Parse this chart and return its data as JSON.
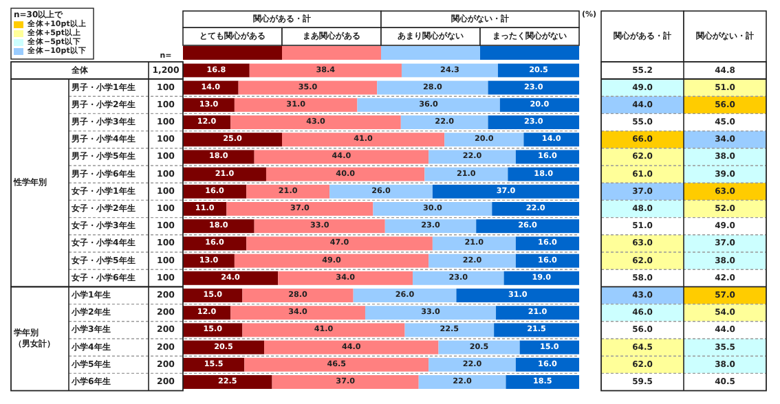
{
  "chart_data": [
    {
      "type": "bar",
      "orientation": "horizontal",
      "stacked": true,
      "legend": "top",
      "tick_labels": "y",
      "xlim": [
        0,
        100
      ],
      "categories": [
        "全体"
      ],
      "series": [
        {
          "name": "とても関心がある",
          "color": "#7b0000",
          "values": [
            16.8
          ],
          "value_labels": [
            "16.8"
          ]
        },
        {
          "name": "まあ関心がある",
          "color": "#ff8080",
          "values": [
            38.4
          ],
          "value_labels": [
            "38.4"
          ]
        },
        {
          "name": "あまり関心がない",
          "color": "#99ccff",
          "values": [
            24.3
          ],
          "value_labels": [
            "24.3"
          ]
        },
        {
          "name": "まったく関心がない",
          "color": "#0066cc",
          "values": [
            20.5
          ],
          "value_labels": [
            "20.5"
          ]
        }
      ],
      "annotations": [
        "関心がある・計",
        "関心がない・計",
        "n=",
        "(%)",
        "1,200"
      ]
    },
    {
      "type": "bar",
      "orientation": "horizontal",
      "stacked": true,
      "tick_labels": "y",
      "xlim": [
        0,
        100
      ],
      "ylabel": "性学年別",
      "categories": [
        "男子・小学1年生",
        "男子・小学2年生",
        "男子・小学3年生",
        "男子・小学4年生",
        "男子・小学5年生",
        "男子・小学6年生",
        "女子・小学1年生",
        "女子・小学2年生",
        "女子・小学3年生",
        "女子・小学4年生",
        "女子・小学5年生",
        "女子・小学6年生"
      ],
      "series": [
        {
          "color": "#7b0000",
          "values": [
            14.0,
            13.0,
            12.0,
            25.0,
            18.0,
            21.0,
            16.0,
            11.0,
            18.0,
            16.0,
            13.0,
            24.0
          ],
          "value_labels": [
            "14.0",
            "13.0",
            "12.0",
            "25.0",
            "18.0",
            "21.0",
            "16.0",
            "11.0",
            "18.0",
            "16.0",
            "13.0",
            "24.0"
          ]
        },
        {
          "color": "#ff8080",
          "values": [
            35.0,
            31.0,
            43.0,
            41.0,
            44.0,
            40.0,
            21.0,
            37.0,
            33.0,
            47.0,
            49.0,
            34.0
          ],
          "value_labels": [
            "35.0",
            "31.0",
            "43.0",
            "41.0",
            "44.0",
            "40.0",
            "21.0",
            "37.0",
            "33.0",
            "47.0",
            "49.0",
            "34.0"
          ]
        },
        {
          "color": "#99ccff",
          "values": [
            28.0,
            36.0,
            22.0,
            20.0,
            22.0,
            21.0,
            26.0,
            30.0,
            23.0,
            21.0,
            22.0,
            23.0
          ],
          "value_labels": [
            "28.0",
            "36.0",
            "22.0",
            "20.0",
            "22.0",
            "21.0",
            "26.0",
            "30.0",
            "23.0",
            "21.0",
            "22.0",
            "23.0"
          ]
        },
        {
          "color": "#0066cc",
          "values": [
            23.0,
            20.0,
            23.0,
            14.0,
            16.0,
            18.0,
            37.0,
            22.0,
            26.0,
            16.0,
            16.0,
            19.0
          ],
          "value_labels": [
            "23.0",
            "20.0",
            "23.0",
            "14.0",
            "16.0",
            "18.0",
            "37.0",
            "22.0",
            "26.0",
            "16.0",
            "16.0",
            "19.0"
          ]
        }
      ],
      "annotations": [
        "100",
        "100",
        "100",
        "100",
        "100",
        "100",
        "100",
        "100",
        "100",
        "100",
        "100",
        "100"
      ]
    },
    {
      "type": "bar",
      "orientation": "horizontal",
      "stacked": true,
      "tick_labels": "y",
      "xlim": [
        0,
        100
      ],
      "ylabel": "学年別（男女計）",
      "categories": [
        "小学1年生",
        "小学2年生",
        "小学3年生",
        "小学4年生",
        "小学5年生",
        "小学6年生"
      ],
      "series": [
        {
          "color": "#7b0000",
          "values": [
            15.0,
            12.0,
            15.0,
            20.5,
            15.5,
            22.5
          ],
          "value_labels": [
            "15.0",
            "12.0",
            "15.0",
            "20.5",
            "15.5",
            "22.5"
          ]
        },
        {
          "color": "#ff8080",
          "values": [
            28.0,
            34.0,
            41.0,
            44.0,
            46.5,
            37.0
          ],
          "value_labels": [
            "28.0",
            "34.0",
            "41.0",
            "44.0",
            "46.5",
            "37.0"
          ]
        },
        {
          "color": "#99ccff",
          "values": [
            26.0,
            33.0,
            22.5,
            20.5,
            22.0,
            22.0
          ],
          "value_labels": [
            "26.0",
            "33.0",
            "22.5",
            "20.5",
            "22.0",
            "22.0"
          ]
        },
        {
          "color": "#0066cc",
          "values": [
            31.0,
            21.0,
            21.5,
            15.0,
            16.0,
            18.5
          ],
          "value_labels": [
            "31.0",
            "21.0",
            "21.5",
            "15.0",
            "16.0",
            "18.5"
          ]
        }
      ],
      "annotations": [
        "200",
        "200",
        "200",
        "200",
        "200",
        "200"
      ]
    },
    {
      "type": "other",
      "categories": [
        "関心がある・計",
        "関心がない・計"
      ],
      "annotations": [
        "55.2",
        "44.8",
        "49.0",
        "51.0",
        "44.0",
        "56.0",
        "55.0",
        "45.0",
        "66.0",
        "34.0",
        "62.0",
        "38.0",
        "61.0",
        "39.0",
        "37.0",
        "63.0",
        "48.0",
        "52.0",
        "51.0",
        "49.0",
        "63.0",
        "37.0",
        "62.0",
        "38.0",
        "58.0",
        "42.0",
        "43.0",
        "57.0",
        "46.0",
        "54.0",
        "56.0",
        "44.0",
        "64.5",
        "35.5",
        "62.0",
        "38.0",
        "59.5",
        "40.5"
      ],
      "colors": [
        null,
        null,
        "#ccffff",
        "#ffff99",
        "#99ccff",
        "#ffcc00",
        null,
        null,
        "#ffcc00",
        "#99ccff",
        "#ffff99",
        "#ccffff",
        "#ffff99",
        "#ccffff",
        "#99ccff",
        "#ffcc00",
        "#ccffff",
        "#ffff99",
        null,
        null,
        "#ffff99",
        "#ccffff",
        "#ffff99",
        "#ccffff",
        null,
        null,
        "#99ccff",
        "#ffcc00",
        "#ccffff",
        "#ffff99",
        null,
        null,
        "#ffff99",
        "#ccffff",
        "#ffff99",
        "#ccffff",
        null,
        null
      ]
    },
    {
      "type": "other",
      "title": "n=30以上で",
      "categories": [
        "全体+10pt以上",
        "全体+5pt以上",
        "全体−5pt以下",
        "全体−10pt以下"
      ],
      "colors": [
        "#ffcc00",
        "#ffff99",
        "#ccffff",
        "#99ccff"
      ]
    }
  ]
}
